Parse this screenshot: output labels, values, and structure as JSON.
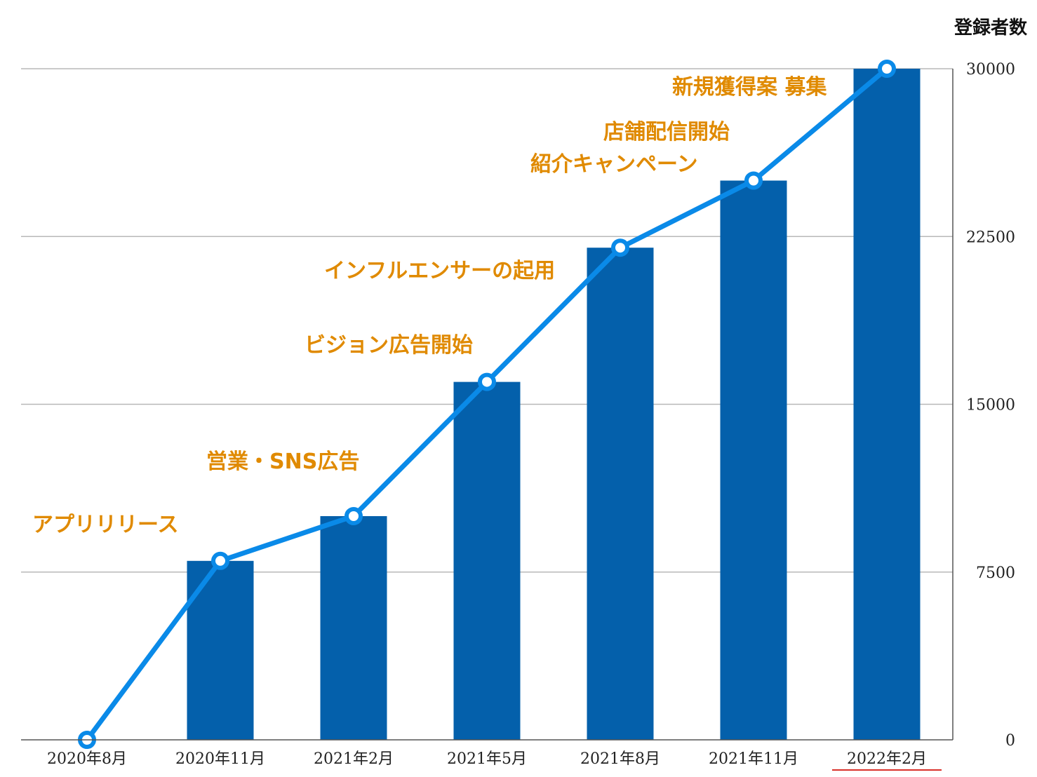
{
  "chart_data": {
    "type": "bar",
    "title": "",
    "xlabel": "",
    "ylabel": "登録者数",
    "ylim": [
      0,
      30000
    ],
    "yticks": [
      0,
      7500,
      15000,
      22500,
      30000
    ],
    "y_axis_side": "right",
    "grid": true,
    "categories": [
      "2020年8月",
      "2020年11月",
      "2021年2月",
      "2021年5月",
      "2021年8月",
      "2021年11月",
      "2022年2月"
    ],
    "series": [
      {
        "name": "bars",
        "type": "bar",
        "values": [
          0,
          8000,
          10000,
          16000,
          22000,
          25000,
          30000
        ]
      },
      {
        "name": "line",
        "type": "line",
        "values": [
          0,
          8000,
          10000,
          16000,
          22000,
          25000,
          30000
        ]
      }
    ],
    "annotations": [
      {
        "text": "アプリリリース",
        "near_category": "2020年8月"
      },
      {
        "text": "営業・SNS広告",
        "near_category": "2020年11月"
      },
      {
        "text": "ビジョン広告開始",
        "near_category": "2021年2月"
      },
      {
        "text": "インフルエンサーの起用",
        "near_category": "2021年5月"
      },
      {
        "text": "紹介キャンペーン",
        "near_category": "2021年8月"
      },
      {
        "text": "店舗配信開始",
        "near_category": "2021年8月"
      },
      {
        "text": "新規獲得案 募集",
        "near_category": "2021年11月"
      }
    ],
    "highlighted_category": "2022年2月"
  },
  "colors": {
    "bar": "#0460ab",
    "line": "#0a8ae8",
    "marker_fill": "#ffffff",
    "grid": "#b8b8b8",
    "axis": "#555555",
    "annotation": "#e08a00",
    "highlight_underline": "#d9302a"
  }
}
